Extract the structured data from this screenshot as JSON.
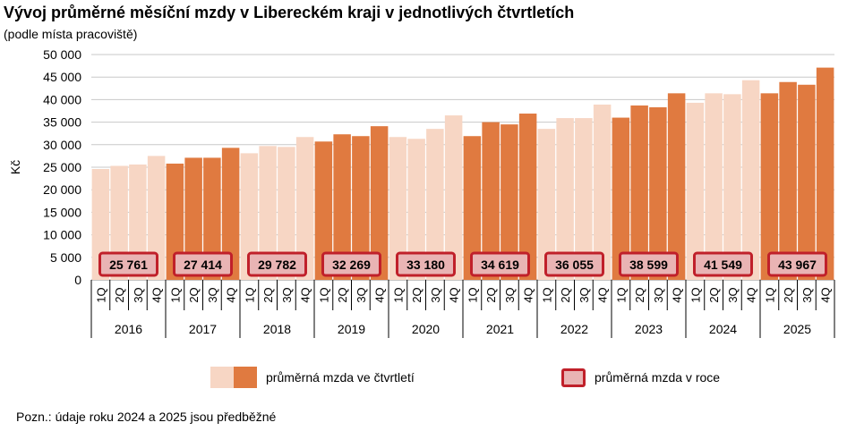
{
  "title": "Vývoj průměrné měsíční mzdy v Libereckém kraji v jednotlivých čtvrtletích",
  "subtitle": "(podle místa pracoviště)",
  "note": "Pozn.: údaje roku 2024 a 2025 jsou předběžné",
  "legend": {
    "quarterly_label": "průměrná mzda ve čtvrtletí",
    "annual_label": "průměrná mzda v roce"
  },
  "colors": {
    "light_bar": "#f7d6c4",
    "dark_bar": "#e07a40",
    "annual_box_fill": "#e9b4b4",
    "annual_box_border": "#c0202a",
    "grid": "#c8c8c8"
  },
  "chart_data": {
    "type": "bar",
    "title": "Vývoj průměrné měsíční mzdy v Libereckém kraji v jednotlivých čtvrtletích",
    "ylabel": "Kč",
    "ylim": [
      0,
      50000
    ],
    "ytick_step": 5000,
    "ytick_labels": [
      "0",
      "5 000",
      "10 000",
      "15 000",
      "20 000",
      "25 000",
      "30 000",
      "35 000",
      "40 000",
      "45 000",
      "50 000"
    ],
    "grid": true,
    "quarter_labels": [
      "1Q",
      "2Q",
      "3Q",
      "4Q"
    ],
    "years": [
      {
        "year": "2016",
        "quarters": [
          24600,
          25300,
          25600,
          27500
        ],
        "annual": 25761,
        "annual_label": "25 761"
      },
      {
        "year": "2017",
        "quarters": [
          25800,
          27100,
          27100,
          29300
        ],
        "annual": 27414,
        "annual_label": "27 414"
      },
      {
        "year": "2018",
        "quarters": [
          28100,
          29700,
          29500,
          31700
        ],
        "annual": 29782,
        "annual_label": "29 782"
      },
      {
        "year": "2019",
        "quarters": [
          30700,
          32300,
          31900,
          34100
        ],
        "annual": 32269,
        "annual_label": "32 269"
      },
      {
        "year": "2020",
        "quarters": [
          31700,
          31300,
          33500,
          36500
        ],
        "annual": 33180,
        "annual_label": "33 180"
      },
      {
        "year": "2021",
        "quarters": [
          31900,
          35000,
          34500,
          36900
        ],
        "annual": 34619,
        "annual_label": "34 619"
      },
      {
        "year": "2022",
        "quarters": [
          33500,
          35900,
          35900,
          38900
        ],
        "annual": 36055,
        "annual_label": "36 055"
      },
      {
        "year": "2023",
        "quarters": [
          36000,
          38700,
          38300,
          41400
        ],
        "annual": 38599,
        "annual_label": "38 599"
      },
      {
        "year": "2024",
        "quarters": [
          39300,
          41400,
          41200,
          44300
        ],
        "annual": 41549,
        "annual_label": "41 549"
      },
      {
        "year": "2025",
        "quarters": [
          41400,
          43900,
          43300,
          47100
        ],
        "annual": 43967,
        "annual_label": "43 967"
      }
    ]
  }
}
